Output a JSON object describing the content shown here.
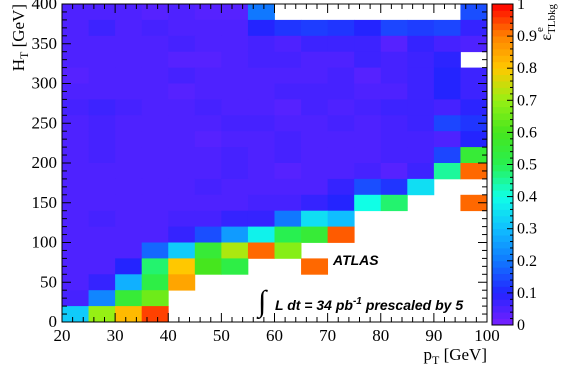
{
  "chart_data": {
    "type": "heatmap",
    "xlabel": "p_T [GeV]",
    "ylabel": "H_T [GeV]",
    "xlim": [
      20,
      100
    ],
    "ylim": [
      0,
      400
    ],
    "x_ticks": [
      "20",
      "30",
      "40",
      "50",
      "60",
      "70",
      "80",
      "90",
      "100"
    ],
    "y_ticks": [
      "0",
      "50",
      "100",
      "150",
      "200",
      "250",
      "300",
      "350",
      "400"
    ],
    "x_bin_edges": [
      20,
      25,
      30,
      35,
      40,
      45,
      50,
      55,
      60,
      65,
      70,
      75,
      80,
      85,
      90,
      95,
      100
    ],
    "y_bin_edges": [
      0,
      20,
      40,
      60,
      80,
      100,
      120,
      140,
      160,
      180,
      200,
      220,
      240,
      260,
      280,
      300,
      320,
      340,
      360,
      380,
      400
    ],
    "values_by_row_from_top": [
      [
        0.05,
        0.05,
        0.05,
        0.04,
        0.05,
        0.04,
        0.04,
        0.2,
        null,
        null,
        null,
        null,
        null,
        null,
        null,
        0.15
      ],
      [
        0.05,
        0.07,
        0.05,
        0.06,
        0.05,
        0.05,
        0.05,
        0.1,
        0.12,
        0.13,
        0.12,
        0.1,
        0.14,
        0.13,
        0.14,
        0.08
      ],
      [
        0.05,
        0.05,
        0.05,
        0.05,
        0.06,
        0.05,
        0.05,
        0.06,
        0.05,
        0.07,
        0.07,
        0.07,
        0.04,
        0.08,
        0.06,
        0.05
      ],
      [
        0.05,
        0.05,
        0.05,
        0.05,
        0.04,
        0.04,
        0.05,
        0.06,
        0.06,
        0.05,
        0.05,
        0.07,
        0.06,
        0.07,
        0.09,
        null
      ],
      [
        0.04,
        0.05,
        0.05,
        0.05,
        0.06,
        0.05,
        0.05,
        0.05,
        0.05,
        0.05,
        0.06,
        0.04,
        0.06,
        0.07,
        0.1,
        0.07
      ],
      [
        0.05,
        0.05,
        0.05,
        0.05,
        0.04,
        0.05,
        0.05,
        0.05,
        0.06,
        0.06,
        0.06,
        0.05,
        0.05,
        0.07,
        0.1,
        0.07
      ],
      [
        0.06,
        0.07,
        0.06,
        0.05,
        0.05,
        0.06,
        0.05,
        0.05,
        0.04,
        0.06,
        0.05,
        0.06,
        0.07,
        0.07,
        0.06,
        0.09
      ],
      [
        0.05,
        0.06,
        0.05,
        0.05,
        0.05,
        0.05,
        0.06,
        0.06,
        0.05,
        0.05,
        0.06,
        0.05,
        0.06,
        0.07,
        0.14,
        0.12
      ],
      [
        0.05,
        0.06,
        0.05,
        0.05,
        0.05,
        0.04,
        0.05,
        0.05,
        0.06,
        0.05,
        0.05,
        0.05,
        0.06,
        0.06,
        0.05,
        0.1
      ],
      [
        0.05,
        0.06,
        0.05,
        0.05,
        0.05,
        0.05,
        0.06,
        0.05,
        0.06,
        0.05,
        0.05,
        0.05,
        0.06,
        0.06,
        0.14,
        0.55
      ],
      [
        0.05,
        0.05,
        0.05,
        0.05,
        0.05,
        0.05,
        0.06,
        0.05,
        0.04,
        0.05,
        0.05,
        0.06,
        0.04,
        0.07,
        0.45,
        0.92
      ],
      [
        0.05,
        0.05,
        0.05,
        0.05,
        0.05,
        0.06,
        0.05,
        0.05,
        0.05,
        0.05,
        0.08,
        0.15,
        0.12,
        0.35,
        null,
        null
      ],
      [
        0.05,
        0.05,
        0.05,
        0.05,
        0.05,
        0.05,
        0.05,
        0.06,
        0.06,
        0.08,
        0.1,
        0.4,
        0.48,
        null,
        null,
        0.92
      ],
      [
        0.05,
        0.06,
        0.05,
        0.05,
        0.06,
        0.06,
        0.08,
        0.08,
        0.2,
        0.35,
        0.3,
        null,
        null,
        null,
        null,
        null
      ],
      [
        0.05,
        0.05,
        0.05,
        0.05,
        0.08,
        0.15,
        0.25,
        0.38,
        0.5,
        0.55,
        0.93,
        null,
        null,
        null,
        null,
        null
      ],
      [
        0.05,
        0.05,
        0.05,
        0.18,
        0.32,
        0.55,
        0.72,
        0.92,
        0.68,
        null,
        null,
        null,
        null,
        null,
        null,
        null
      ],
      [
        0.05,
        0.05,
        0.1,
        0.48,
        0.8,
        0.6,
        0.52,
        null,
        null,
        0.92,
        null,
        null,
        null,
        null,
        null,
        null
      ],
      [
        0.05,
        0.08,
        0.28,
        0.52,
        0.85,
        null,
        null,
        null,
        null,
        null,
        null,
        null,
        null,
        null,
        null,
        null
      ],
      [
        0.06,
        0.22,
        0.55,
        0.65,
        null,
        null,
        null,
        null,
        null,
        null,
        null,
        null,
        null,
        null,
        null,
        null
      ],
      [
        0.32,
        0.7,
        0.82,
        0.95,
        null,
        null,
        null,
        null,
        null,
        null,
        null,
        null,
        null,
        null,
        null,
        null
      ]
    ],
    "colorbar": {
      "title": "ε^e_TLbkg",
      "range": [
        0,
        1
      ],
      "ticks": [
        "0",
        "0.1",
        "0.2",
        "0.3",
        "0.4",
        "0.5",
        "0.6",
        "0.7",
        "0.8",
        "0.9",
        "1"
      ]
    },
    "annotations": {
      "experiment": "ATLAS",
      "lumi_integral": "∫",
      "lumi_text": "L dt = 34 pb",
      "lumi_exp": "-1",
      "lumi_suffix": "prescaled by 5"
    }
  }
}
